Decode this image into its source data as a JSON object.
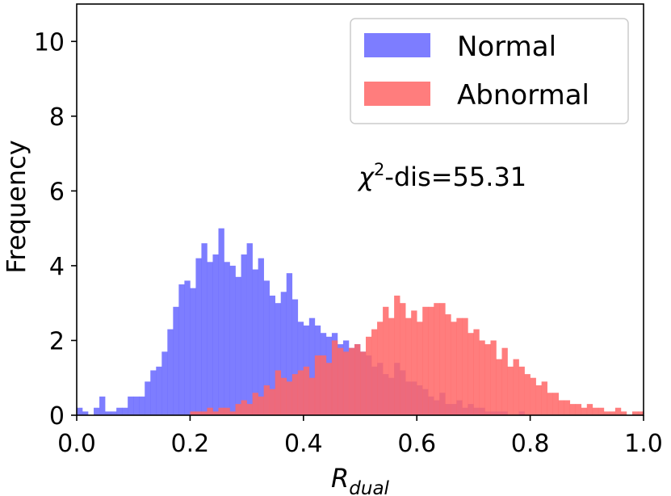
{
  "chart_data": {
    "type": "histogram",
    "title": "",
    "xlabel": {
      "main": "R",
      "sub": "dual"
    },
    "ylabel": "Frequency",
    "xlim": [
      0.0,
      1.0
    ],
    "ylim": [
      0,
      11
    ],
    "xticks": [
      0.0,
      0.2,
      0.4,
      0.6,
      0.8,
      1.0
    ],
    "xtick_labels": [
      "0.0",
      "0.2",
      "0.4",
      "0.6",
      "0.8",
      "1.0"
    ],
    "yticks": [
      0,
      2,
      4,
      6,
      8,
      10
    ],
    "ytick_labels": [
      "0",
      "2",
      "4",
      "6",
      "8",
      "10"
    ],
    "bin_width": 0.01,
    "annotation": {
      "symbol": "χ",
      "sup": "2",
      "text": "-dis=55.31"
    },
    "legend": {
      "position": "top-right"
    },
    "series": [
      {
        "name": "Normal",
        "color": "#6666ff",
        "opacity": 0.85,
        "values": [
          0.2,
          0.1,
          0.0,
          0.2,
          0.5,
          0.1,
          0.1,
          0.2,
          0.2,
          0.5,
          0.5,
          0.5,
          0.9,
          1.2,
          1.3,
          1.7,
          2.3,
          2.9,
          3.5,
          3.6,
          3.4,
          4.2,
          4.6,
          4.1,
          4.3,
          5.0,
          4.1,
          4.0,
          3.7,
          4.3,
          4.6,
          3.9,
          4.2,
          3.6,
          3.2,
          3.0,
          3.3,
          3.8,
          3.1,
          2.5,
          2.4,
          2.6,
          2.4,
          2.2,
          2.1,
          2.2,
          1.9,
          2.0,
          1.8,
          1.9,
          1.7,
          1.6,
          1.3,
          1.4,
          1.1,
          1.0,
          1.4,
          1.2,
          0.9,
          0.9,
          0.8,
          0.7,
          0.5,
          0.4,
          0.6,
          0.3,
          0.3,
          0.4,
          0.2,
          0.3,
          0.2,
          0.2,
          0.1,
          0.1,
          0.1,
          0.1,
          0.0,
          0.0,
          0.1,
          0.0,
          0.0,
          0.0,
          0.0,
          0.0,
          0.0,
          0.0,
          0.0,
          0.0,
          0.0,
          0.0,
          0.0,
          0.0,
          0.0,
          0.0,
          0.0,
          0.0,
          0.0,
          0.0,
          0.0,
          0.0
        ]
      },
      {
        "name": "Abnormal",
        "color": "#ff6666",
        "opacity": 0.85,
        "values": [
          0.0,
          0.0,
          0.0,
          0.0,
          0.0,
          0.0,
          0.0,
          0.0,
          0.0,
          0.0,
          0.0,
          0.0,
          0.0,
          0.0,
          0.0,
          0.0,
          0.0,
          0.0,
          0.0,
          0.0,
          0.1,
          0.1,
          0.1,
          0.2,
          0.1,
          0.2,
          0.2,
          0.1,
          0.3,
          0.4,
          0.3,
          0.6,
          0.5,
          0.8,
          0.7,
          1.2,
          1.0,
          0.9,
          1.1,
          1.2,
          1.3,
          1.0,
          1.6,
          1.6,
          1.4,
          2.0,
          1.8,
          1.7,
          1.8,
          1.9,
          1.7,
          2.1,
          2.3,
          2.5,
          2.9,
          2.6,
          3.2,
          3.0,
          2.6,
          2.8,
          2.5,
          2.9,
          2.9,
          3.0,
          3.0,
          2.7,
          2.5,
          2.6,
          2.6,
          2.2,
          2.3,
          2.0,
          1.9,
          2.0,
          1.5,
          1.8,
          1.3,
          1.5,
          1.3,
          1.1,
          1.0,
          0.8,
          0.9,
          0.6,
          0.6,
          0.4,
          0.4,
          0.3,
          0.3,
          0.2,
          0.3,
          0.2,
          0.2,
          0.1,
          0.1,
          0.2,
          0.1,
          0.0,
          0.1,
          0.1
        ]
      }
    ]
  }
}
